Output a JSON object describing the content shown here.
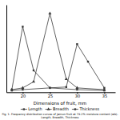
{
  "chart_data": {
    "type": "line",
    "xlabel": "Dimensions of fruit, mm",
    "caption": "Fig. 1. Frequency distribution curves of Jamun fruit at 79.2% moisture content (wb).\nLength, Breadth, Thickness",
    "xlim": [
      17,
      37
    ],
    "xticks": [
      20,
      25,
      30,
      35
    ],
    "ylim": [
      0,
      10
    ],
    "tick_labels": "x",
    "grid": false,
    "series": [
      {
        "name": "Length",
        "color": "#3a3a3a",
        "marker": "square",
        "line_style": "solid",
        "x": [
          18,
          20,
          22,
          25,
          30,
          35
        ],
        "values": [
          0.3,
          7.5,
          2.5,
          0.5,
          0.3,
          0.2
        ]
      },
      {
        "name": "Breadth",
        "color": "#3a3a3a",
        "marker": "triangle",
        "line_style": "solid",
        "x": [
          18,
          20,
          22,
          25,
          28,
          30,
          35
        ],
        "values": [
          0.3,
          0.5,
          1.2,
          9.0,
          1.5,
          0.5,
          0.3
        ]
      },
      {
        "name": "Thickness",
        "color": "#3a3a3a",
        "marker": "square",
        "line_style": "solid",
        "x": [
          18,
          20,
          25,
          28,
          30,
          32,
          35
        ],
        "values": [
          0.2,
          0.3,
          0.5,
          0.6,
          5.5,
          3.5,
          0.5
        ]
      }
    ]
  }
}
